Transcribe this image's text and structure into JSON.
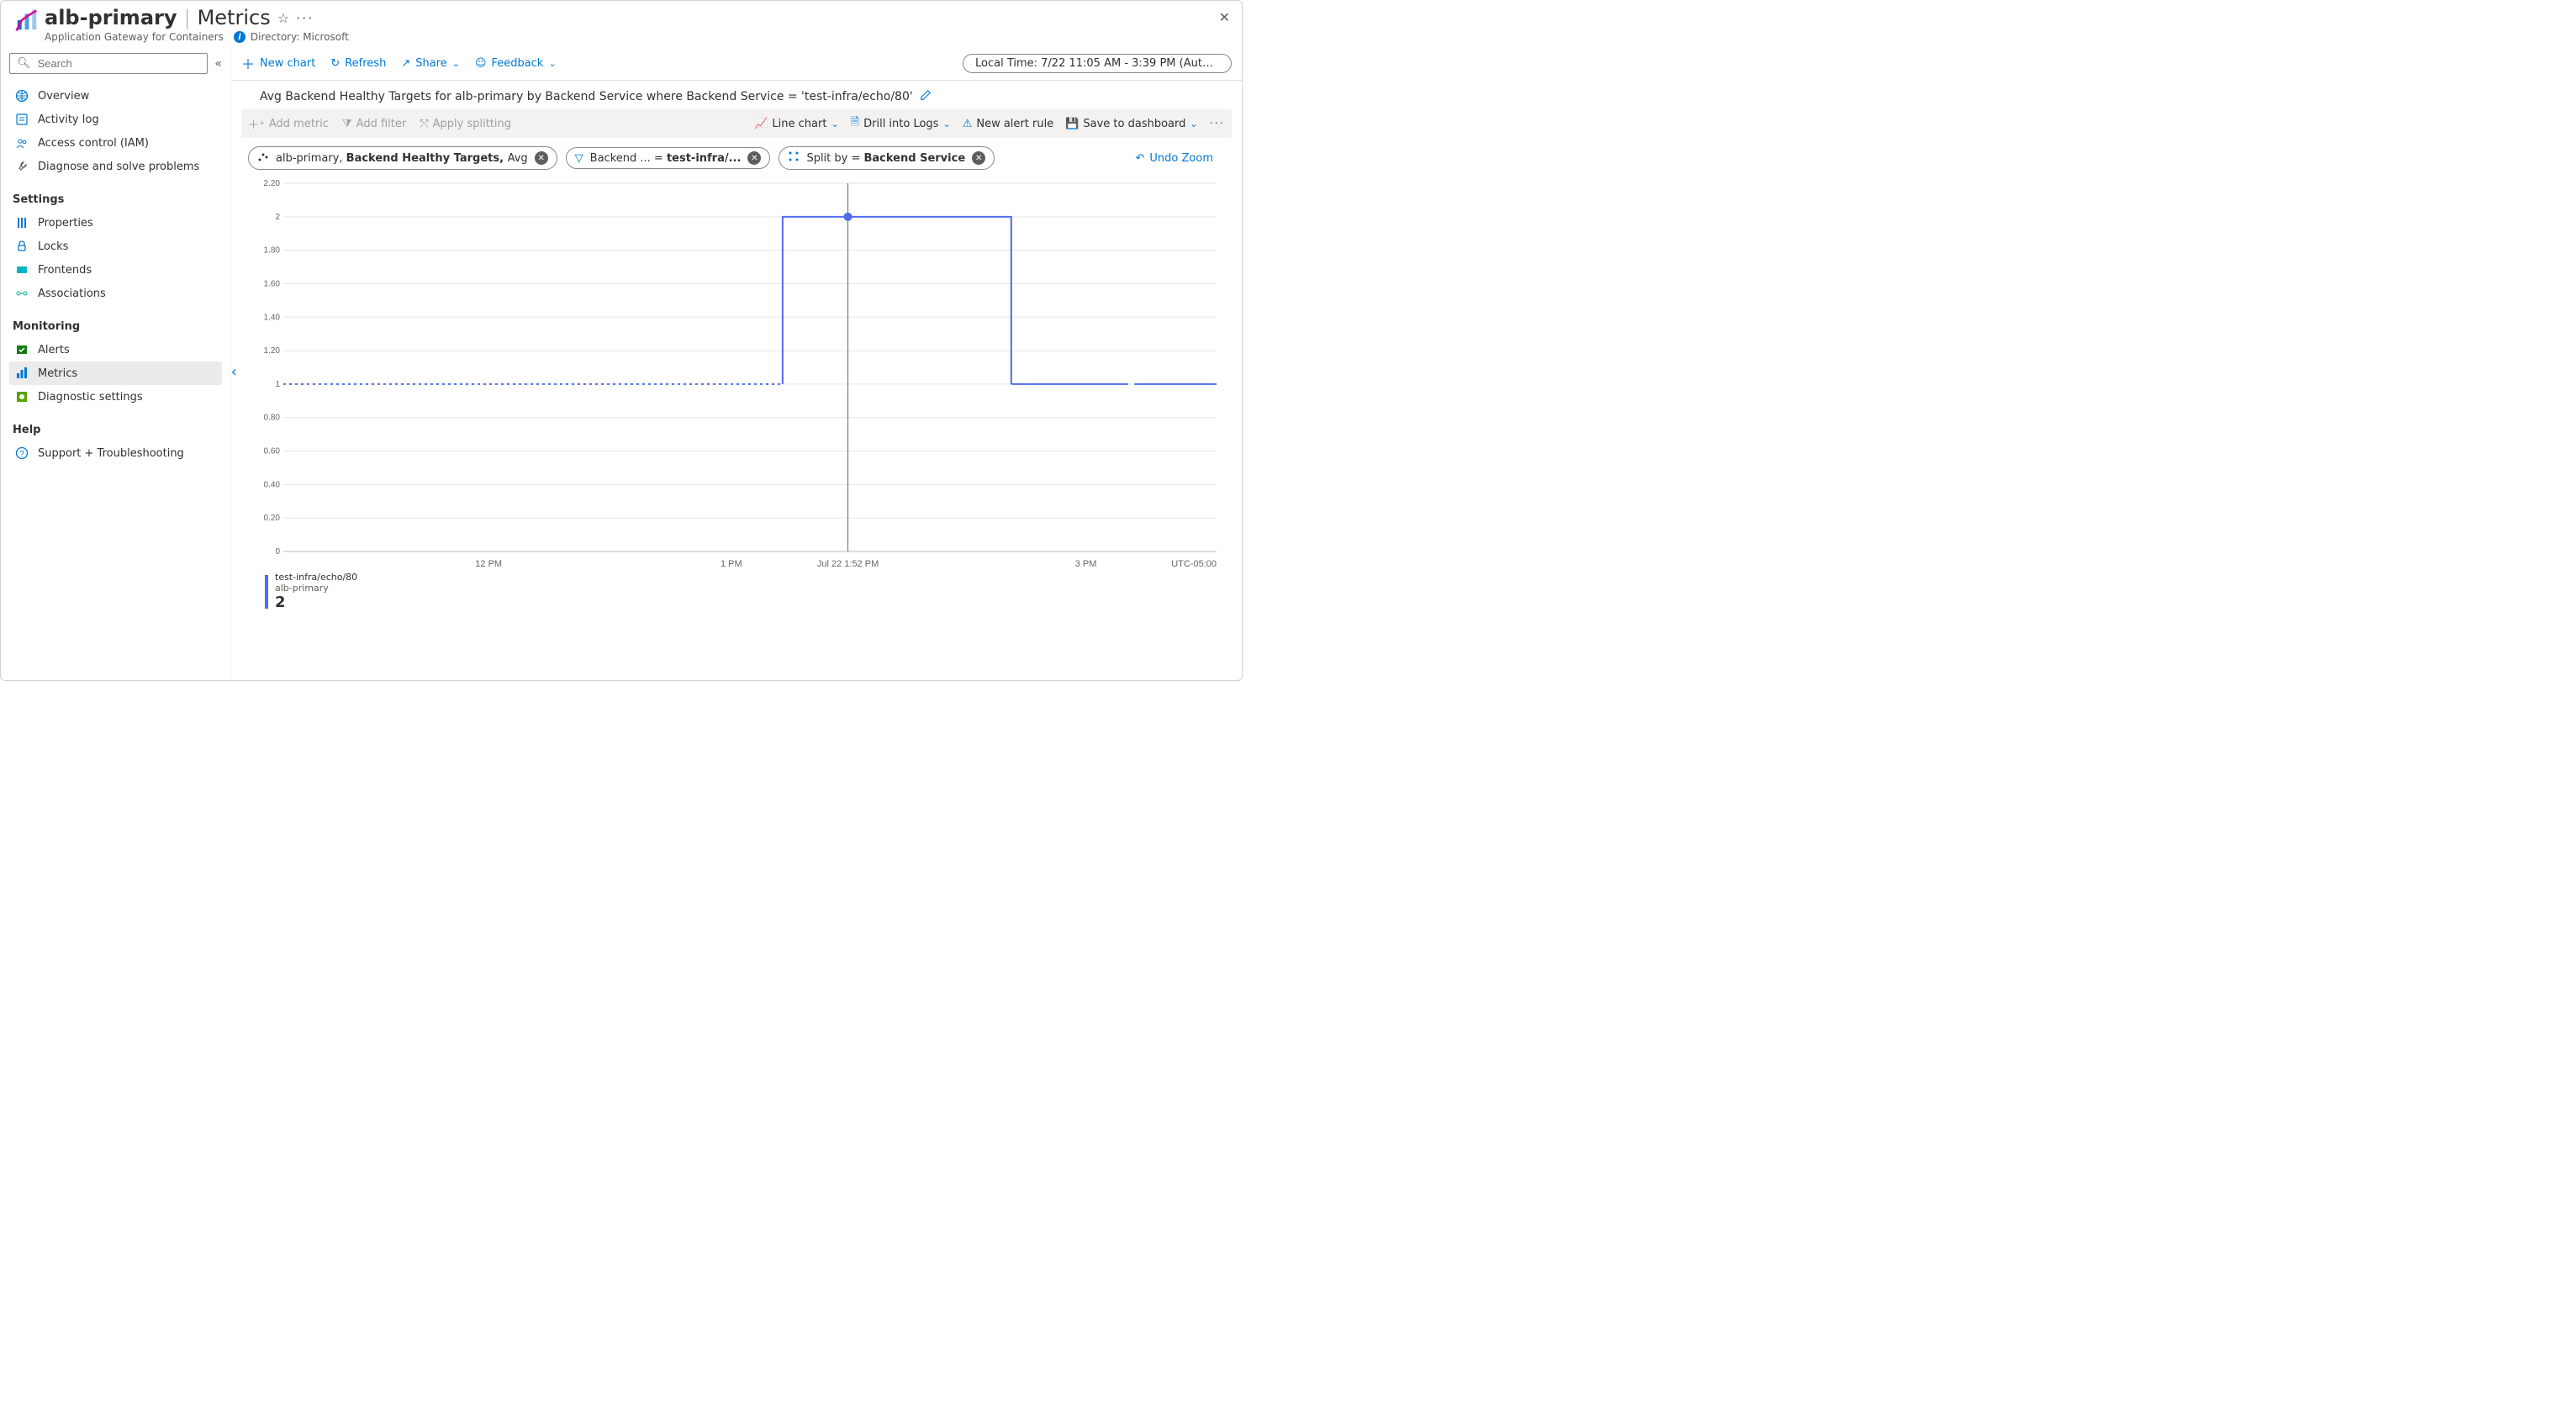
{
  "header": {
    "resource_name": "alb-primary",
    "page": "Metrics",
    "subtitle": "Application Gateway for Containers",
    "directory_label": "Directory: Microsoft"
  },
  "search": {
    "placeholder": "Search"
  },
  "nav": {
    "top": [
      {
        "key": "overview",
        "label": "Overview",
        "icon": "globe",
        "color": "#0078d4"
      },
      {
        "key": "activity",
        "label": "Activity log",
        "icon": "log",
        "color": "#0078d4"
      },
      {
        "key": "iam",
        "label": "Access control (IAM)",
        "icon": "people",
        "color": "#0078d4"
      },
      {
        "key": "diagnose",
        "label": "Diagnose and solve problems",
        "icon": "wrench",
        "color": "#605e5c"
      }
    ],
    "settings_heading": "Settings",
    "settings": [
      {
        "key": "properties",
        "label": "Properties",
        "icon": "sliders",
        "color": "#0078d4"
      },
      {
        "key": "locks",
        "label": "Locks",
        "icon": "lock",
        "color": "#0078d4"
      },
      {
        "key": "frontends",
        "label": "Frontends",
        "icon": "frontends",
        "color": "#00b7c3"
      },
      {
        "key": "associations",
        "label": "Associations",
        "icon": "assoc",
        "color": "#00b294"
      }
    ],
    "monitoring_heading": "Monitoring",
    "monitoring": [
      {
        "key": "alerts",
        "label": "Alerts",
        "icon": "alerts",
        "color": "#107c10"
      },
      {
        "key": "metrics",
        "label": "Metrics",
        "icon": "bars",
        "color": "#0078d4",
        "selected": true
      },
      {
        "key": "diag",
        "label": "Diagnostic settings",
        "icon": "diag",
        "color": "#57a300"
      }
    ],
    "help_heading": "Help",
    "help": [
      {
        "key": "support",
        "label": "Support + Troubleshooting",
        "icon": "help",
        "color": "#0078d4"
      }
    ]
  },
  "toolbar": {
    "new_chart": "New chart",
    "refresh": "Refresh",
    "share": "Share",
    "feedback": "Feedback",
    "time_range": "Local Time: 7/22 11:05 AM - 3:39 PM (Automatic..."
  },
  "chart": {
    "title": "Avg Backend Healthy Targets for alb-primary by Backend Service where Backend Service = 'test-infra/echo/80'",
    "ct_left": {
      "add_metric": "Add metric",
      "add_filter": "Add filter",
      "apply_split": "Apply splitting"
    },
    "ct_right": {
      "line_chart": "Line chart",
      "drill": "Drill into Logs",
      "alert": "New alert rule",
      "save": "Save to dashboard"
    },
    "pills": {
      "scope_pre": "alb-primary, ",
      "scope_bold": "Backend Healthy Targets, ",
      "scope_post": "Avg",
      "filter_pre": "Backend ...  = ",
      "filter_bold": "test-infra/...",
      "split_pre": "Split by = ",
      "split_bold": "Backend Service"
    },
    "undo_zoom": "Undo Zoom",
    "y": {
      "min": 0,
      "max": 2.2,
      "ticks": [
        0,
        0.2,
        0.4,
        0.6,
        0.8,
        1,
        1.2,
        1.4,
        1.6,
        1.8,
        2,
        2.2
      ],
      "labels": [
        "0",
        "0.20",
        "0.40",
        "0.60",
        "0.80",
        "1",
        "1.20",
        "1.40",
        "1.60",
        "1.80",
        "2",
        "2.20"
      ]
    },
    "x": {
      "labels": [
        "12 PM",
        "1 PM",
        "Jul 22 1:52 PM",
        "3 PM"
      ],
      "positions": [
        0.22,
        0.48,
        0.605,
        0.86
      ],
      "tz": "UTC-05:00"
    },
    "series": {
      "color": "#4f6bed",
      "dash_end": 0.535,
      "step_up_at": 0.535,
      "step_down_at": 0.78,
      "high": 2,
      "low": 1,
      "final_gap": [
        0.905,
        0.912
      ],
      "marker_x": 0.605,
      "marker_y": 2,
      "cursor_x": 0.605
    },
    "legend": {
      "l1": "test-infra/echo/80",
      "l2": "alb-primary",
      "value": "2",
      "color": "#4f6bed"
    }
  }
}
